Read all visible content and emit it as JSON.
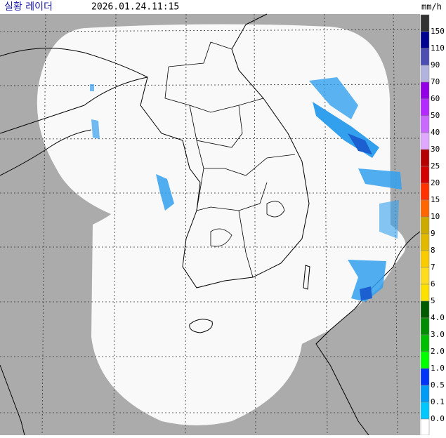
{
  "header": {
    "title": "실황 레이더",
    "time": "2026.01.24.11:15"
  },
  "legend": {
    "unit": "mm/h",
    "labels": [
      "150",
      "110",
      "90",
      "70",
      "60",
      "50",
      "40",
      "30",
      "25",
      "20",
      "15",
      "10",
      "9",
      "8",
      "7",
      "6",
      "5",
      "4.0",
      "3.0",
      "2.0",
      "1.0",
      "0.5",
      "0.1",
      "0.0"
    ],
    "colors": [
      "#333333",
      "#000390",
      "#4c4eb1",
      "#b3b4de",
      "#9300e4",
      "#b329ff",
      "#c969ff",
      "#dfa9ff",
      "#b40000",
      "#d20000",
      "#ff3200",
      "#ff6600",
      "#ccaa00",
      "#e0b900",
      "#f9cb00",
      "#ffdc1f",
      "#ffe100",
      "#005a00",
      "#008c00",
      "#00be00",
      "#00ff00",
      "#0033f5",
      "#009bf5",
      "#00c8ff",
      "#ffffff"
    ]
  }
}
